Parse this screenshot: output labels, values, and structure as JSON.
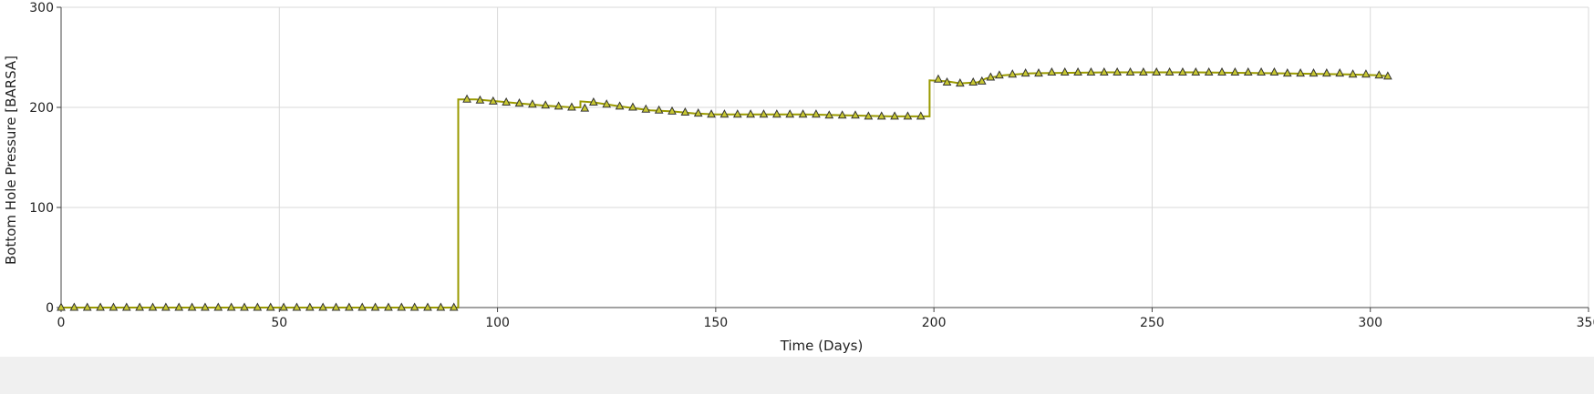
{
  "chart_data": {
    "type": "line",
    "title": "",
    "xlabel": "Time (Days)",
    "ylabel": "Bottom Hole Pressure [BARSA]",
    "xlim": [
      0,
      350
    ],
    "ylim": [
      0,
      300
    ],
    "x_ticks": [
      0,
      50,
      100,
      150,
      200,
      250,
      300,
      350
    ],
    "y_ticks": [
      0,
      100,
      200,
      300
    ],
    "grid": true,
    "colors": {
      "line": "#9a9a00",
      "marker_fill": "#c8c832",
      "marker_stroke": "#333333",
      "grid": "#d9d9d9",
      "axis": "#444444"
    },
    "series": [
      {
        "name": "Bottom Hole Pressure",
        "step": true,
        "line_points": [
          [
            0,
            0
          ],
          [
            91,
            0
          ],
          [
            91,
            208
          ],
          [
            95,
            208
          ],
          [
            100,
            206
          ],
          [
            105,
            204
          ],
          [
            110,
            202
          ],
          [
            117,
            200
          ],
          [
            119,
            200
          ],
          [
            119,
            206
          ],
          [
            122,
            205
          ],
          [
            128,
            201
          ],
          [
            135,
            197
          ],
          [
            140,
            196
          ],
          [
            145,
            194
          ],
          [
            150,
            193
          ],
          [
            170,
            193
          ],
          [
            180,
            192
          ],
          [
            190,
            191
          ],
          [
            199,
            191
          ],
          [
            199,
            227
          ],
          [
            203,
            226
          ],
          [
            206,
            224
          ],
          [
            210,
            225
          ],
          [
            212,
            229
          ],
          [
            216,
            232
          ],
          [
            222,
            234
          ],
          [
            240,
            235
          ],
          [
            260,
            235
          ],
          [
            280,
            234
          ],
          [
            295,
            233
          ],
          [
            302,
            232
          ],
          [
            304,
            231
          ]
        ],
        "marker_points": [
          [
            0,
            0
          ],
          [
            3,
            0
          ],
          [
            6,
            0
          ],
          [
            9,
            0
          ],
          [
            12,
            0
          ],
          [
            15,
            0
          ],
          [
            18,
            0
          ],
          [
            21,
            0
          ],
          [
            24,
            0
          ],
          [
            27,
            0
          ],
          [
            30,
            0
          ],
          [
            33,
            0
          ],
          [
            36,
            0
          ],
          [
            39,
            0
          ],
          [
            42,
            0
          ],
          [
            45,
            0
          ],
          [
            48,
            0
          ],
          [
            51,
            0
          ],
          [
            54,
            0
          ],
          [
            57,
            0
          ],
          [
            60,
            0
          ],
          [
            63,
            0
          ],
          [
            66,
            0
          ],
          [
            69,
            0
          ],
          [
            72,
            0
          ],
          [
            75,
            0
          ],
          [
            78,
            0
          ],
          [
            81,
            0
          ],
          [
            84,
            0
          ],
          [
            87,
            0
          ],
          [
            90,
            0
          ],
          [
            93,
            208
          ],
          [
            96,
            207
          ],
          [
            99,
            206
          ],
          [
            102,
            205
          ],
          [
            105,
            204
          ],
          [
            108,
            203
          ],
          [
            111,
            202
          ],
          [
            114,
            201
          ],
          [
            117,
            200
          ],
          [
            120,
            199
          ],
          [
            122,
            205
          ],
          [
            125,
            203
          ],
          [
            128,
            201
          ],
          [
            131,
            200
          ],
          [
            134,
            198
          ],
          [
            137,
            197
          ],
          [
            140,
            196
          ],
          [
            143,
            195
          ],
          [
            146,
            194
          ],
          [
            149,
            193
          ],
          [
            152,
            193
          ],
          [
            155,
            193
          ],
          [
            158,
            193
          ],
          [
            161,
            193
          ],
          [
            164,
            193
          ],
          [
            167,
            193
          ],
          [
            170,
            193
          ],
          [
            173,
            193
          ],
          [
            176,
            192
          ],
          [
            179,
            192
          ],
          [
            182,
            192
          ],
          [
            185,
            191
          ],
          [
            188,
            191
          ],
          [
            191,
            191
          ],
          [
            194,
            191
          ],
          [
            197,
            191
          ],
          [
            201,
            228
          ],
          [
            203,
            225
          ],
          [
            206,
            224
          ],
          [
            209,
            225
          ],
          [
            211,
            226
          ],
          [
            213,
            230
          ],
          [
            215,
            232
          ],
          [
            218,
            233
          ],
          [
            221,
            234
          ],
          [
            224,
            234
          ],
          [
            227,
            235
          ],
          [
            230,
            235
          ],
          [
            233,
            235
          ],
          [
            236,
            235
          ],
          [
            239,
            235
          ],
          [
            242,
            235
          ],
          [
            245,
            235
          ],
          [
            248,
            235
          ],
          [
            251,
            235
          ],
          [
            254,
            235
          ],
          [
            257,
            235
          ],
          [
            260,
            235
          ],
          [
            263,
            235
          ],
          [
            266,
            235
          ],
          [
            269,
            235
          ],
          [
            272,
            235
          ],
          [
            275,
            235
          ],
          [
            278,
            235
          ],
          [
            281,
            234
          ],
          [
            284,
            234
          ],
          [
            287,
            234
          ],
          [
            290,
            234
          ],
          [
            293,
            234
          ],
          [
            296,
            233
          ],
          [
            299,
            233
          ],
          [
            302,
            232
          ],
          [
            304,
            231
          ]
        ]
      }
    ]
  }
}
